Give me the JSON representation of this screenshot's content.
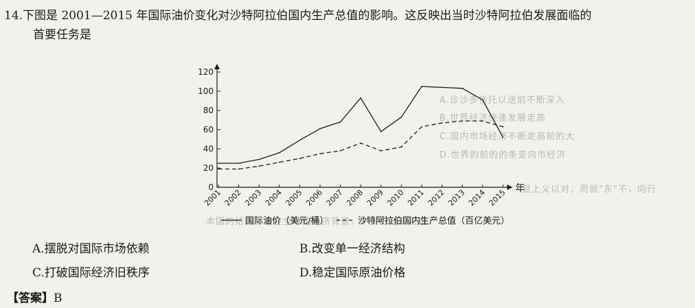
{
  "question": {
    "line1": "14.下图是 2001—2015 年国际油价变化对沙特阿拉伯国内生产总值的影响。这反映出当时沙特阿拉伯发展面临的",
    "line2": "首要任务是"
  },
  "chart_data": {
    "type": "line",
    "x": [
      2001,
      2002,
      2003,
      2004,
      2005,
      2006,
      2007,
      2008,
      2009,
      2010,
      2011,
      2012,
      2013,
      2014,
      2015
    ],
    "xlabel": "年",
    "ylim": [
      0,
      120
    ],
    "yticks": [
      0,
      20,
      40,
      60,
      80,
      100,
      120
    ],
    "grid": false,
    "legend_position": "bottom",
    "series": [
      {
        "name": "国际油价（美元/桶）",
        "style": "solid",
        "values": [
          25,
          25,
          29,
          36,
          49,
          61,
          68,
          93,
          58,
          73,
          105,
          104,
          103,
          91,
          52
        ]
      },
      {
        "name": "沙特阿拉伯国内生产总值（百亿美元）",
        "style": "dashed",
        "values": [
          19,
          19,
          22,
          26,
          30,
          35,
          38,
          46,
          38,
          42,
          63,
          67,
          69,
          69,
          63
        ]
      }
    ]
  },
  "options": [
    {
      "label": "A.摆脱对国际市场依赖"
    },
    {
      "label": "B.改变单一经济结构"
    },
    {
      "label": "C.打破国际经济旧秩序"
    },
    {
      "label": "D.稳定国际原油价格"
    }
  ],
  "answer": {
    "tag": "【答案】",
    "value": "B"
  },
  "colors": {
    "ink": "#1a1a1a",
    "paper": "#f1f1ee",
    "bleed": "#b9b9b6"
  }
}
